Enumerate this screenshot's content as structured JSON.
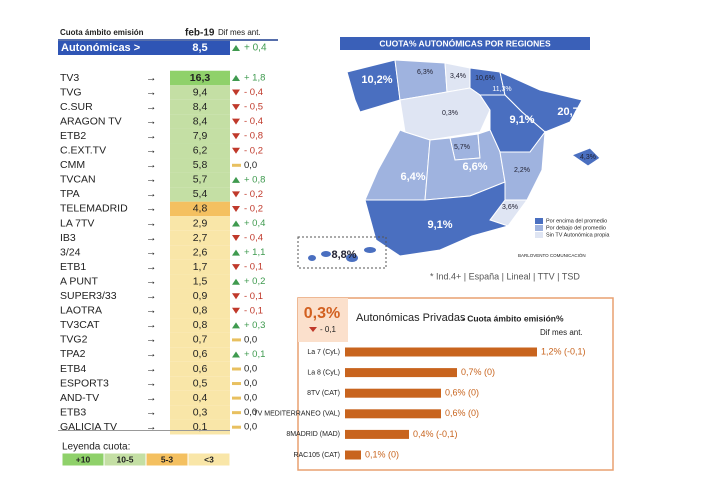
{
  "table": {
    "header": {
      "label": "Cuota ámbito emisión",
      "period": "feb-19",
      "diff": "Dif mes ant."
    },
    "summary": {
      "name": "Autonómicas >",
      "share": "8,5",
      "diff": "+ 0,4",
      "trend": "up"
    },
    "rows": [
      {
        "name": "TV3",
        "share": "16,3",
        "diff": "+ 1,8",
        "trend": "up",
        "color": "#8fd16a"
      },
      {
        "name": "TVG",
        "share": "9,4",
        "diff": "- 0,4",
        "trend": "down",
        "color": "#c4dfa4"
      },
      {
        "name": "C.SUR",
        "share": "8,4",
        "diff": "- 0,5",
        "trend": "down",
        "color": "#c4dfa4"
      },
      {
        "name": "ARAGON TV",
        "share": "8,4",
        "diff": "- 0,4",
        "trend": "down",
        "color": "#c4dfa4"
      },
      {
        "name": "ETB2",
        "share": "7,9",
        "diff": "- 0,8",
        "trend": "down",
        "color": "#c4dfa4"
      },
      {
        "name": "C.EXT.TV",
        "share": "6,2",
        "diff": "- 0,2",
        "trend": "down",
        "color": "#c4dfa4"
      },
      {
        "name": "CMM",
        "share": "5,8",
        "diff": "0,0",
        "trend": "flat",
        "color": "#c4dfa4"
      },
      {
        "name": "TVCAN",
        "share": "5,7",
        "diff": "+ 0,8",
        "trend": "up",
        "color": "#c4dfa4"
      },
      {
        "name": "TPA",
        "share": "5,4",
        "diff": "- 0,2",
        "trend": "down",
        "color": "#c4dfa4"
      },
      {
        "name": "TELEMADRID",
        "share": "4,8",
        "diff": "- 0,2",
        "trend": "down",
        "color": "#f4c060"
      },
      {
        "name": "LA 7TV",
        "share": "2,9",
        "diff": "+ 0,4",
        "trend": "up",
        "color": "#f9e6a8"
      },
      {
        "name": "IB3",
        "share": "2,7",
        "diff": "- 0,4",
        "trend": "down",
        "color": "#f9e6a8"
      },
      {
        "name": "3/24",
        "share": "2,6",
        "diff": "+ 1,1",
        "trend": "up",
        "color": "#f9e6a8"
      },
      {
        "name": "ETB1",
        "share": "1,7",
        "diff": "- 0,1",
        "trend": "down",
        "color": "#f9e6a8"
      },
      {
        "name": "A PUNT",
        "share": "1,5",
        "diff": "+ 0,2",
        "trend": "up",
        "color": "#f9e6a8"
      },
      {
        "name": "SUPER3/33",
        "share": "0,9",
        "diff": "- 0,1",
        "trend": "down",
        "color": "#f9e6a8"
      },
      {
        "name": "LAOTRA",
        "share": "0,8",
        "diff": "- 0,1",
        "trend": "down",
        "color": "#f9e6a8"
      },
      {
        "name": "TV3CAT",
        "share": "0,8",
        "diff": "+ 0,3",
        "trend": "up",
        "color": "#f9e6a8"
      },
      {
        "name": "TVG2",
        "share": "0,7",
        "diff": "0,0",
        "trend": "flat",
        "color": "#f9e6a8"
      },
      {
        "name": "TPA2",
        "share": "0,6",
        "diff": "+ 0,1",
        "trend": "up",
        "color": "#f9e6a8"
      },
      {
        "name": "ETB4",
        "share": "0,6",
        "diff": "0,0",
        "trend": "flat",
        "color": "#f9e6a8"
      },
      {
        "name": "ESPORT3",
        "share": "0,5",
        "diff": "0,0",
        "trend": "flat",
        "color": "#f9e6a8"
      },
      {
        "name": "AND-TV",
        "share": "0,4",
        "diff": "0,0",
        "trend": "flat",
        "color": "#f9e6a8"
      },
      {
        "name": "ETB3",
        "share": "0,3",
        "diff": "0,0",
        "trend": "flat",
        "color": "#f9e6a8"
      },
      {
        "name": "GALICIA TV",
        "share": "0,1",
        "diff": "0,0",
        "trend": "flat",
        "color": "#f9e6a8"
      }
    ],
    "legend": {
      "title": "Leyenda cuota:",
      "items": [
        {
          "label": "+10",
          "color": "#8fd16a"
        },
        {
          "label": "10-5",
          "color": "#c4dfa4"
        },
        {
          "label": "5-3",
          "color": "#f4c060"
        },
        {
          "label": "<3",
          "color": "#f9e6a8"
        }
      ]
    }
  },
  "map": {
    "title": "CUOTA% AUTONÓMICAS POR REGIONES",
    "regions": [
      "10,2%",
      "6,3%",
      "3,4%",
      "10,6%",
      "11,3%",
      "0,3%",
      "9,1%",
      "20,7%",
      "5,7%",
      "6,6%",
      "6,4%",
      "2,2%",
      "4,3%",
      "3,6%",
      "9,1%",
      "8,8%"
    ],
    "legend": [
      {
        "label": "Por encima del promedio",
        "color": "#4a6fc0"
      },
      {
        "label": "Por debajo del promedio",
        "color": "#9fb3df"
      },
      {
        "label": "Sin TV Autonómica propia",
        "color": "#dfe5f3"
      }
    ],
    "brand": "BARLOVENTO COMUNICACIÓN",
    "note": "* Ind.4+ | España | Lineal | TTV | TSD"
  },
  "chart_data": {
    "type": "bar",
    "title": "Autonómicas  Privadas",
    "subtitle": "- Cuota ámbito emisión%",
    "diff_header": "Dif mes ant.",
    "total": "0,3%",
    "total_diff": "- 0,1",
    "color": "#c8641e",
    "categories": [
      "La 7 (CyL)",
      "La 8 (CyL)",
      "8TV (CAT)",
      "TV MEDITERRANEO (VAL)",
      "8MADRID (MAD)",
      "RAC105 (CAT)"
    ],
    "values": [
      1.2,
      0.7,
      0.6,
      0.6,
      0.4,
      0.1
    ],
    "value_labels": [
      "1,2% (-0,1)",
      "0,7% (0)",
      "0,6% (0)",
      "0,6% (0)",
      "0,4% (-0,1)",
      "0,1% (0)"
    ]
  }
}
